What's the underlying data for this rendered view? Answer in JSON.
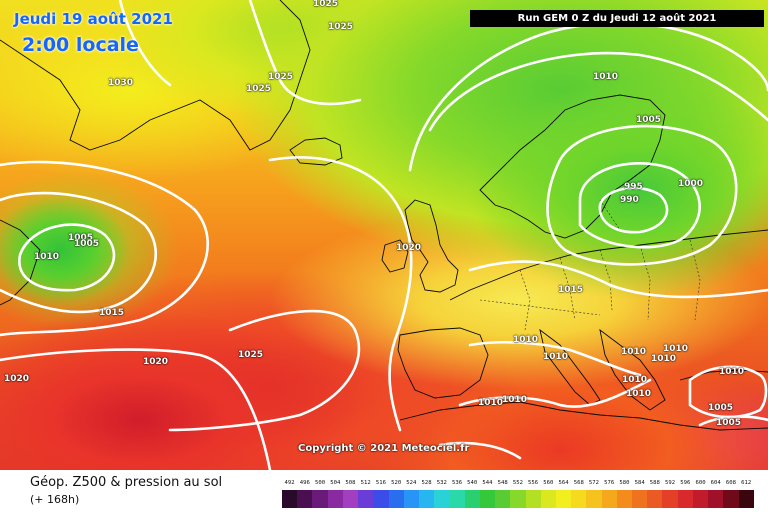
{
  "header": {
    "date": "Jeudi 19 août 2021",
    "time": "2:00 locale",
    "run": "Run GEM 0 Z du Jeudi 12 août 2021"
  },
  "copyright": "Copyright © 2021 Meteociel.fr",
  "footer": {
    "title": "Géop. Z500 & pression au sol",
    "subtitle": "(+ 168h)"
  },
  "isobar_labels": [
    "1025",
    "1025",
    "1030",
    "1025",
    "1025",
    "1010",
    "1005",
    "995",
    "1000",
    "990",
    "1005",
    "1005",
    "1010",
    "1020",
    "1015",
    "1015",
    "1020",
    "1025",
    "1020",
    "1010",
    "1010",
    "1010",
    "1010",
    "1010",
    "1010",
    "1010",
    "1010",
    "1010",
    "1005",
    "1005",
    "1010"
  ],
  "legend": {
    "values": [
      "492",
      "496",
      "500",
      "504",
      "508",
      "512",
      "516",
      "520",
      "524",
      "528",
      "532",
      "536",
      "540",
      "544",
      "548",
      "552",
      "556",
      "560",
      "564",
      "568",
      "572",
      "576",
      "580",
      "584",
      "588",
      "592",
      "596",
      "600",
      "604",
      "608",
      "612"
    ],
    "colors": [
      "#2a0a2a",
      "#4a0f50",
      "#6a1a78",
      "#8a2aa0",
      "#a23ec0",
      "#6a3cd8",
      "#3c4ce8",
      "#2a6ef0",
      "#2894f5",
      "#28b6f0",
      "#2ad2d8",
      "#2ad8a8",
      "#2ad070",
      "#34c83a",
      "#58cc34",
      "#86d92a",
      "#b4e024",
      "#dbe81f",
      "#f3ee1d",
      "#f6da1d",
      "#f6c21d",
      "#f6a81d",
      "#f38c1d",
      "#ef721f",
      "#ea5a24",
      "#e44028",
      "#d82a2c",
      "#c01c2c",
      "#a01028",
      "#700a1a",
      "#3a050c"
    ]
  }
}
